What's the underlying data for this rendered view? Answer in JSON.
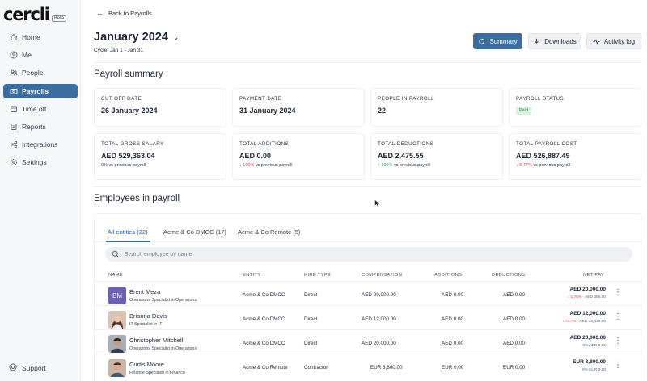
{
  "app": {
    "logo": "cercli",
    "beta": "Beta"
  },
  "sidebar": {
    "items": [
      {
        "label": "Home",
        "icon": "home-icon"
      },
      {
        "label": "Me",
        "icon": "user-circle-icon"
      },
      {
        "label": "People",
        "icon": "people-icon"
      },
      {
        "label": "Payrolls",
        "icon": "payroll-icon",
        "active": true
      },
      {
        "label": "Time off",
        "icon": "calendar-icon"
      },
      {
        "label": "Reports",
        "icon": "report-icon"
      },
      {
        "label": "Integrations",
        "icon": "integrations-icon"
      },
      {
        "label": "Settings",
        "icon": "gear-icon"
      }
    ],
    "support": "Support"
  },
  "header": {
    "back": "Back to Payrolls",
    "title": "January 2024",
    "cycle": "Cycle: Jan 1 - Jan 31",
    "buttons": {
      "summary": "Summary",
      "downloads": "Downloads",
      "activity": "Activity log"
    }
  },
  "summary": {
    "title": "Payroll summary",
    "cards": [
      {
        "label": "CUT OFF DATE",
        "value": "26 January 2024"
      },
      {
        "label": "PAYMENT DATE",
        "value": "31 January 2024"
      },
      {
        "label": "PEOPLE IN PAYROLL",
        "value": "22"
      },
      {
        "label": "PAYROLL STATUS",
        "badge": "Paid"
      },
      {
        "label": "TOTAL GROSS SALARY",
        "value": "AED 529,363.04",
        "change": "0%",
        "change_text": "vs previous payroll"
      },
      {
        "label": "TOTAL ADDITIONS",
        "value": "AED 0.00",
        "change": "↓ 100%",
        "change_text": "vs previous payroll"
      },
      {
        "label": "TOTAL DEDUCTIONS",
        "value": "AED 2,475.55",
        "change": "↑ 100%",
        "change_text": "vs previous payroll"
      },
      {
        "label": "TOTAL PAYROLL COST",
        "value": "AED 526,887.49",
        "change": "↓ 6.77%",
        "change_text": "vs previous payroll"
      }
    ]
  },
  "employees": {
    "title": "Employees in payroll",
    "tabs": [
      "All entities (22)",
      "Acme & Co DMCC (17)",
      "Acme & Co Remote (5)"
    ],
    "search_placeholder": "Search employee by name",
    "columns": [
      "NAME",
      "ENTITY",
      "HIRE TYPE",
      "COMPENSATION",
      "ADDITIONS",
      "DEDUCTIONS",
      "NET PAY"
    ],
    "rows": [
      {
        "initials": "BM",
        "name": "Brent Meza",
        "role": "Operations Specialist in Operations",
        "entity": "Acme & Co DMCC",
        "hire_type": "Direct",
        "compensation": "AED 20,000.00",
        "additions": "AED 0.00",
        "deductions": "AED 0.00",
        "net_pay": "AED 20,000.00",
        "net_change": "↓ 1.75%",
        "net_prev": "- AED 355.00"
      },
      {
        "initials": "",
        "name": "Brianna Davis",
        "role": "IT Specialist in IT",
        "entity": "Acme & Co DMCC",
        "hire_type": "Direct",
        "compensation": "AED 12,000.00",
        "additions": "AED 0.00",
        "deductions": "AED 0.00",
        "net_pay": "AED 12,000.00",
        "net_change": "↓ 74.7%",
        "net_prev": "- AED 35,435.00"
      },
      {
        "initials": "",
        "name": "Christopher Mitchell",
        "role": "Operations Specialist in Operations",
        "entity": "Acme & Co DMCC",
        "hire_type": "Direct",
        "compensation": "AED 20,000.00",
        "additions": "AED 0.00",
        "deductions": "AED 0.00",
        "net_pay": "AED 20,000.00",
        "net_change": "0%",
        "net_prev": "AED 0.00"
      },
      {
        "initials": "",
        "name": "Curtis Moore",
        "role": "Finance Specialist in Finance",
        "entity": "Acme & Co Remote",
        "hire_type": "Contractor",
        "compensation": "EUR 3,800.00",
        "additions": "EUR 0.00",
        "deductions": "EUR 0.00",
        "net_pay": "EUR 3,800.00",
        "net_change": "0%",
        "net_prev": "EUR 0.00"
      }
    ]
  },
  "colors": {
    "accent": "#3b6d9e",
    "paid_bg": "#d8f1df",
    "negative": "#d14343",
    "positive": "#2e9e5b"
  }
}
